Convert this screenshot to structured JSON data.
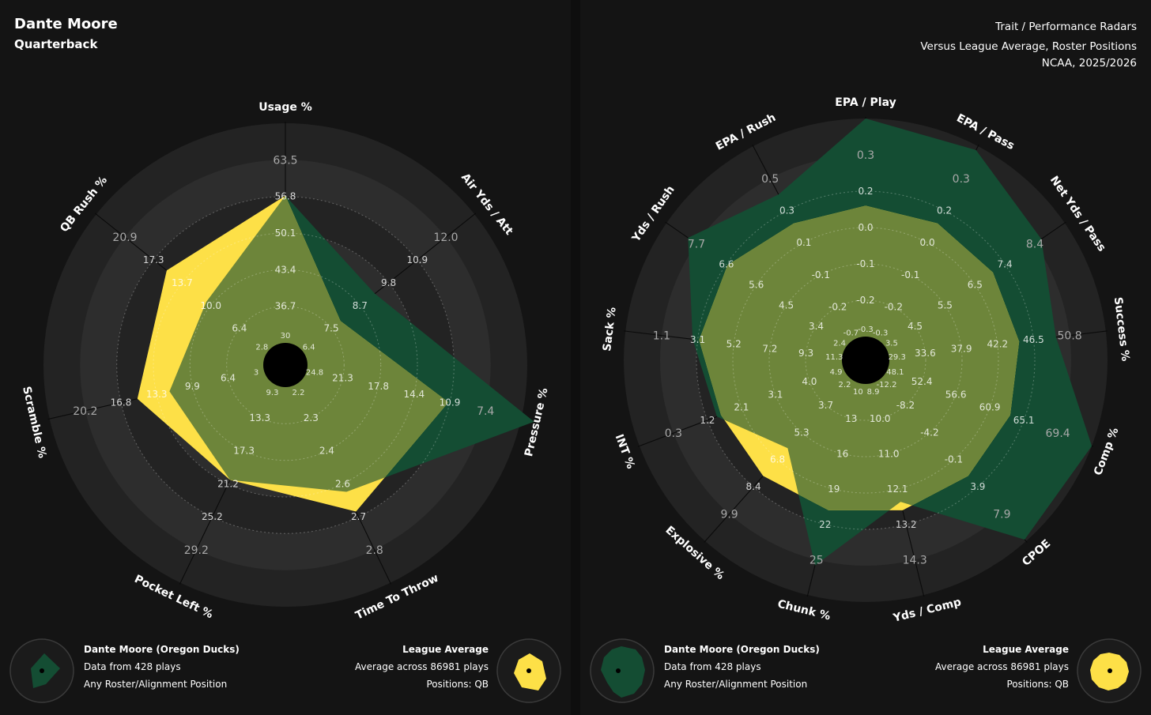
{
  "header": {
    "player_name": "Dante Moore",
    "player_position": "Quarterback",
    "chart_title": "Trait / Performance Radars",
    "subtitle": "Versus League Average, Roster Positions",
    "season": "NCAA, 2025/2026"
  },
  "colors": {
    "player": "#144d33",
    "league": "#fde047",
    "overlap": "#6d853a",
    "ring_dark": "#232323",
    "ring_light": "#2d2d2d",
    "background": "#141414"
  },
  "legend_left": {
    "player_title": "Dante Moore (Oregon Ducks)",
    "player_plays": "Data from 428 plays",
    "player_position": "Any Roster/Alignment Position",
    "league_title": "League Average",
    "league_plays": "Average across 86981 plays",
    "league_positions": "Positions: QB"
  },
  "legend_right": {
    "player_title": "Dante Moore (Oregon Ducks)",
    "player_plays": "Data from 428 plays",
    "player_position": "Any Roster/Alignment Position",
    "league_title": "League Average",
    "league_plays": "Average across 86981 plays",
    "league_positions": "Positions: QB"
  },
  "chart_data": [
    {
      "type": "radar",
      "title": "Trait Radar",
      "axes": [
        {
          "label": "Usage %",
          "max": "63.5",
          "ticks": [
            "30",
            "36.7",
            "43.4",
            "50.1",
            "56.8"
          ]
        },
        {
          "label": "Air Yds / Att",
          "max": "12.0",
          "ticks": [
            "6.4",
            "7.5",
            "8.7",
            "9.8",
            "10.9"
          ]
        },
        {
          "label": "Pressure %",
          "max": "7.4",
          "ticks": [
            "24.8",
            "21.3",
            "17.8",
            "14.4",
            "10.9"
          ]
        },
        {
          "label": "Time To Throw",
          "max": "2.8",
          "ticks": [
            "2.2",
            "2.3",
            "2.4",
            "2.6",
            "2.7"
          ]
        },
        {
          "label": "Pocket Left %",
          "max": "29.2",
          "ticks": [
            "9.3",
            "13.3",
            "17.3",
            "21.2",
            "25.2"
          ]
        },
        {
          "label": "Scramble %",
          "max": "20.2",
          "ticks": [
            "3",
            "6.4",
            "9.9",
            "13.3",
            "16.8"
          ]
        },
        {
          "label": "QB Rush %",
          "max": "20.9",
          "ticks": [
            "2.8",
            "6.4",
            "10.0",
            "13.7",
            "17.3"
          ]
        }
      ],
      "series": [
        {
          "name": "Dante Moore (Oregon Ducks)",
          "values": [
            0.67,
            0.42,
            1.06,
            0.54,
            0.48,
            0.44,
            0.36
          ]
        },
        {
          "name": "League Average",
          "values": [
            0.67,
            0.22,
            0.66,
            0.64,
            0.48,
            0.59,
            0.59
          ]
        }
      ]
    },
    {
      "type": "radar",
      "title": "Performance Radar",
      "axes": [
        {
          "label": "EPA / Play",
          "max": "0.3",
          "ticks": [
            "-0.3",
            "-0.2",
            "-0.1",
            "0.0",
            "0.2"
          ]
        },
        {
          "label": "EPA / Pass",
          "max": "0.3",
          "ticks": [
            "-0.3",
            "-0.2",
            "-0.1",
            "0.0",
            "0.2"
          ]
        },
        {
          "label": "Net Yds / Pass",
          "max": "8.4",
          "ticks": [
            "3.5",
            "4.5",
            "5.5",
            "6.5",
            "7.4"
          ]
        },
        {
          "label": "Success %",
          "max": "50.8",
          "ticks": [
            "29.3",
            "33.6",
            "37.9",
            "42.2",
            "46.5"
          ]
        },
        {
          "label": "Comp %",
          "max": "69.4",
          "ticks": [
            "48.1",
            "52.4",
            "56.6",
            "60.9",
            "65.1"
          ]
        },
        {
          "label": "CPOE",
          "max": "7.9",
          "ticks": [
            "-12.2",
            "-8.2",
            "-4.2",
            "-0.1",
            "3.9"
          ]
        },
        {
          "label": "Yds / Comp",
          "max": "14.3",
          "ticks": [
            "8.9",
            "10.0",
            "11.0",
            "12.1",
            "13.2"
          ]
        },
        {
          "label": "Chunk %",
          "max": "25",
          "ticks": [
            "10",
            "13",
            "16",
            "19",
            "22"
          ]
        },
        {
          "label": "Explosive %",
          "max": "9.9",
          "ticks": [
            "2.2",
            "3.7",
            "5.3",
            "6.8",
            "8.4"
          ]
        },
        {
          "label": "INT %",
          "max": "0.3",
          "ticks": [
            "4.9",
            "4.0",
            "3.1",
            "2.1",
            "1.2"
          ]
        },
        {
          "label": "Sack %",
          "max": "1.1",
          "ticks": [
            "11.3",
            "9.3",
            "7.2",
            "5.2",
            "3.1"
          ]
        },
        {
          "label": "Yds / Rush",
          "max": "7.7",
          "ticks": [
            "2.4",
            "3.4",
            "4.5",
            "5.6",
            "6.6"
          ]
        },
        {
          "label": "EPA / Rush",
          "max": "0.5",
          "ticks": [
            "-0.7",
            "-0.2",
            "-0.1",
            "0.1",
            "0.3"
          ]
        }
      ],
      "series": [
        {
          "name": "Dante Moore (Oregon Ducks)",
          "values": [
            1.0,
            0.98,
            0.87,
            0.77,
            1.0,
            0.99,
            0.56,
            0.86,
            0.43,
            0.62,
            0.69,
            0.88,
            0.75
          ]
        },
        {
          "name": "League Average",
          "values": [
            0.6,
            0.6,
            0.6,
            0.6,
            0.6,
            0.6,
            0.6,
            0.6,
            0.6,
            0.6,
            0.66,
            0.66,
            0.6
          ]
        }
      ]
    }
  ]
}
